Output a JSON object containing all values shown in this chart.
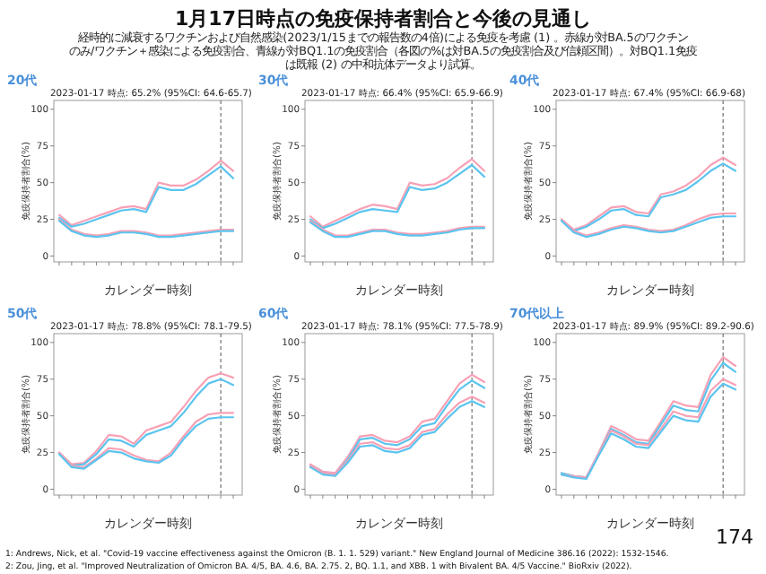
{
  "chart_data": [
    {
      "type": "other",
      "title": "1月17日時点の免疫保持者割合と今後の見通し",
      "subtitle": "経時的に減衰するワクチンおよび自然感染(2023/1/15までの報告数の4倍)による免疫を考慮 (1) 。赤線が対BA.5のワクチンのみ/ワクチン＋感染による免疫割合、青線が対BQ1.1の免疫割合（各図の%は対BA.5の免疫割合及び信頼区間）。対BQ1.1免疫は既報 (2) の中和抗体データより試算。",
      "annotations": [
        "1: Andrews, Nick, et al. \"Covid-19 vaccine effectiveness against the Omicron (B. 1. 1. 529) variant.\" New England Journal of Medicine 386.16 (2022): 1532-1546.",
        "2: Zou, Jing, et al. \"Improved Neutralization of Omicron BA. 4/5, BA. 4.6, BA. 2.75. 2, BQ. 1.1, and XBB. 1 with Bivalent BA. 4/5 Vaccine.\" BioRxiv (2022).",
        "174"
      ]
    },
    {
      "type": "line",
      "title": "20代",
      "subtitle": "2023-01-17 時点: 65.2%  (95%CI: 64.6-65.7)",
      "xlabel": "カレンダー時刻",
      "ylabel": "免疫保持者割合(%)",
      "categories": [
        null,
        null,
        null,
        null,
        null,
        null,
        null,
        null,
        null,
        null,
        null,
        null,
        null,
        null,
        null
      ],
      "ylim": [
        -4,
        106
      ],
      "yticks": [
        0,
        25,
        50,
        75,
        100
      ],
      "series": [
        {
          "color": "#f7a1b5",
          "values": [
            28,
            21,
            24,
            27,
            30,
            33,
            34,
            32,
            50,
            48,
            48,
            52,
            58,
            65,
            58
          ]
        },
        {
          "color": "#5bc4ef",
          "values": [
            26,
            20,
            22,
            25,
            28,
            31,
            32,
            30,
            47,
            45,
            45,
            49,
            55,
            61,
            53
          ]
        },
        {
          "color": "#f7a1b5",
          "values": [
            25,
            18,
            15,
            14,
            15,
            17,
            17,
            16,
            14,
            14,
            15,
            16,
            17,
            18,
            18
          ]
        },
        {
          "color": "#5bc4ef",
          "values": [
            24,
            17,
            14,
            13,
            14,
            16,
            16,
            15,
            13,
            13,
            14,
            15,
            16,
            17,
            17
          ]
        }
      ]
    },
    {
      "type": "line",
      "title": "30代",
      "subtitle": "2023-01-17 時点: 66.4%  (95%CI: 65.9-66.9)",
      "xlabel": "カレンダー時刻",
      "ylabel": "免疫保持者割合(%)",
      "categories": [
        null,
        null,
        null,
        null,
        null,
        null,
        null,
        null,
        null,
        null,
        null,
        null,
        null,
        null,
        null
      ],
      "ylim": [
        -4,
        106
      ],
      "yticks": [
        0,
        25,
        50,
        75,
        100
      ],
      "series": [
        {
          "color": "#f7a1b5",
          "values": [
            27,
            20,
            24,
            28,
            32,
            35,
            34,
            32,
            50,
            48,
            49,
            53,
            60,
            66,
            58
          ]
        },
        {
          "color": "#5bc4ef",
          "values": [
            25,
            19,
            22,
            26,
            30,
            32,
            31,
            30,
            47,
            45,
            46,
            50,
            56,
            62,
            54
          ]
        },
        {
          "color": "#f7a1b5",
          "values": [
            24,
            18,
            14,
            14,
            16,
            18,
            18,
            16,
            15,
            15,
            16,
            17,
            19,
            20,
            20
          ]
        },
        {
          "color": "#5bc4ef",
          "values": [
            23,
            17,
            13,
            13,
            15,
            17,
            17,
            15,
            14,
            14,
            15,
            16,
            18,
            19,
            19
          ]
        }
      ]
    },
    {
      "type": "line",
      "title": "40代",
      "subtitle": "2023-01-17 時点: 67.4%  (95%CI: 66.9-68)",
      "xlabel": "カレンダー時刻",
      "ylabel": "免疫保持者割合(%)",
      "categories": [
        null,
        null,
        null,
        null,
        null,
        null,
        null,
        null,
        null,
        null,
        null,
        null,
        null,
        null,
        null
      ],
      "ylim": [
        -4,
        106
      ],
      "yticks": [
        0,
        25,
        50,
        75,
        100
      ],
      "series": [
        {
          "color": "#f7a1b5",
          "values": [
            25,
            18,
            21,
            27,
            33,
            34,
            30,
            29,
            42,
            44,
            48,
            54,
            62,
            67,
            62
          ]
        },
        {
          "color": "#5bc4ef",
          "values": [
            24,
            17,
            20,
            25,
            31,
            32,
            28,
            27,
            40,
            42,
            45,
            51,
            58,
            63,
            58
          ]
        },
        {
          "color": "#f7a1b5",
          "values": [
            25,
            17,
            14,
            16,
            19,
            21,
            20,
            18,
            17,
            18,
            21,
            25,
            28,
            29,
            29
          ]
        },
        {
          "color": "#5bc4ef",
          "values": [
            24,
            16,
            13,
            15,
            18,
            20,
            19,
            17,
            16,
            17,
            20,
            23,
            26,
            27,
            27
          ]
        }
      ]
    },
    {
      "type": "line",
      "title": "50代",
      "subtitle": "2023-01-17 時点: 78.8%  (95%CI: 78.1-79.5)",
      "xlabel": "カレンダー時刻",
      "ylabel": "免疫保持者割合(%)",
      "categories": [
        null,
        null,
        null,
        null,
        null,
        null,
        null,
        null,
        null,
        null,
        null,
        null,
        null,
        null,
        null
      ],
      "ylim": [
        -4,
        106
      ],
      "yticks": [
        0,
        25,
        50,
        75,
        100
      ],
      "series": [
        {
          "color": "#f7a1b5",
          "values": [
            25,
            17,
            18,
            26,
            37,
            36,
            31,
            40,
            43,
            46,
            56,
            67,
            76,
            79,
            76
          ]
        },
        {
          "color": "#5bc4ef",
          "values": [
            24,
            16,
            17,
            24,
            34,
            33,
            29,
            37,
            40,
            43,
            52,
            63,
            72,
            75,
            71
          ]
        },
        {
          "color": "#f7a1b5",
          "values": [
            25,
            16,
            15,
            21,
            28,
            27,
            23,
            20,
            19,
            25,
            36,
            46,
            51,
            52,
            52
          ]
        },
        {
          "color": "#5bc4ef",
          "values": [
            24,
            15,
            14,
            20,
            26,
            25,
            21,
            19,
            18,
            23,
            34,
            43,
            48,
            49,
            49
          ]
        }
      ]
    },
    {
      "type": "line",
      "title": "60代",
      "subtitle": "2023-01-17 時点: 78.1%  (95%CI: 77.5-78.9)",
      "xlabel": "カレンダー時刻",
      "ylabel": "免疫保持者割合(%)",
      "categories": [
        null,
        null,
        null,
        null,
        null,
        null,
        null,
        null,
        null,
        null,
        null,
        null,
        null,
        null,
        null
      ],
      "ylim": [
        -4,
        106
      ],
      "yticks": [
        0,
        25,
        50,
        75,
        100
      ],
      "series": [
        {
          "color": "#f7a1b5",
          "values": [
            17,
            12,
            11,
            22,
            36,
            37,
            33,
            32,
            36,
            46,
            48,
            60,
            72,
            78,
            73
          ]
        },
        {
          "color": "#5bc4ef",
          "values": [
            16,
            11,
            10,
            20,
            34,
            35,
            31,
            30,
            34,
            43,
            45,
            57,
            68,
            74,
            69
          ]
        },
        {
          "color": "#f7a1b5",
          "values": [
            16,
            11,
            10,
            19,
            31,
            32,
            28,
            27,
            30,
            39,
            41,
            51,
            59,
            63,
            59
          ]
        },
        {
          "color": "#5bc4ef",
          "values": [
            15,
            10,
            9,
            18,
            29,
            30,
            26,
            25,
            28,
            37,
            39,
            48,
            56,
            60,
            56
          ]
        }
      ]
    },
    {
      "type": "line",
      "title": "70代以上",
      "subtitle": "2023-01-17 時点: 89.9%  (95%CI: 89.2-90.6)",
      "xlabel": "カレンダー時刻",
      "ylabel": "免疫保持者割合(%)",
      "categories": [
        null,
        null,
        null,
        null,
        null,
        null,
        null,
        null,
        null,
        null,
        null,
        null,
        null,
        null,
        null
      ],
      "ylim": [
        -4,
        106
      ],
      "yticks": [
        0,
        25,
        50,
        75,
        100
      ],
      "series": [
        {
          "color": "#f7a1b5",
          "values": [
            11,
            9,
            8,
            25,
            43,
            39,
            34,
            33,
            46,
            60,
            57,
            56,
            78,
            90,
            84
          ]
        },
        {
          "color": "#5bc4ef",
          "values": [
            11,
            9,
            8,
            24,
            41,
            37,
            32,
            31,
            44,
            57,
            54,
            53,
            74,
            86,
            80
          ]
        },
        {
          "color": "#f7a1b5",
          "values": [
            10,
            9,
            8,
            24,
            40,
            36,
            31,
            30,
            41,
            53,
            50,
            49,
            67,
            75,
            71
          ]
        },
        {
          "color": "#5bc4ef",
          "values": [
            10,
            8,
            7,
            23,
            38,
            34,
            29,
            28,
            39,
            50,
            47,
            46,
            63,
            72,
            68
          ]
        }
      ]
    }
  ]
}
